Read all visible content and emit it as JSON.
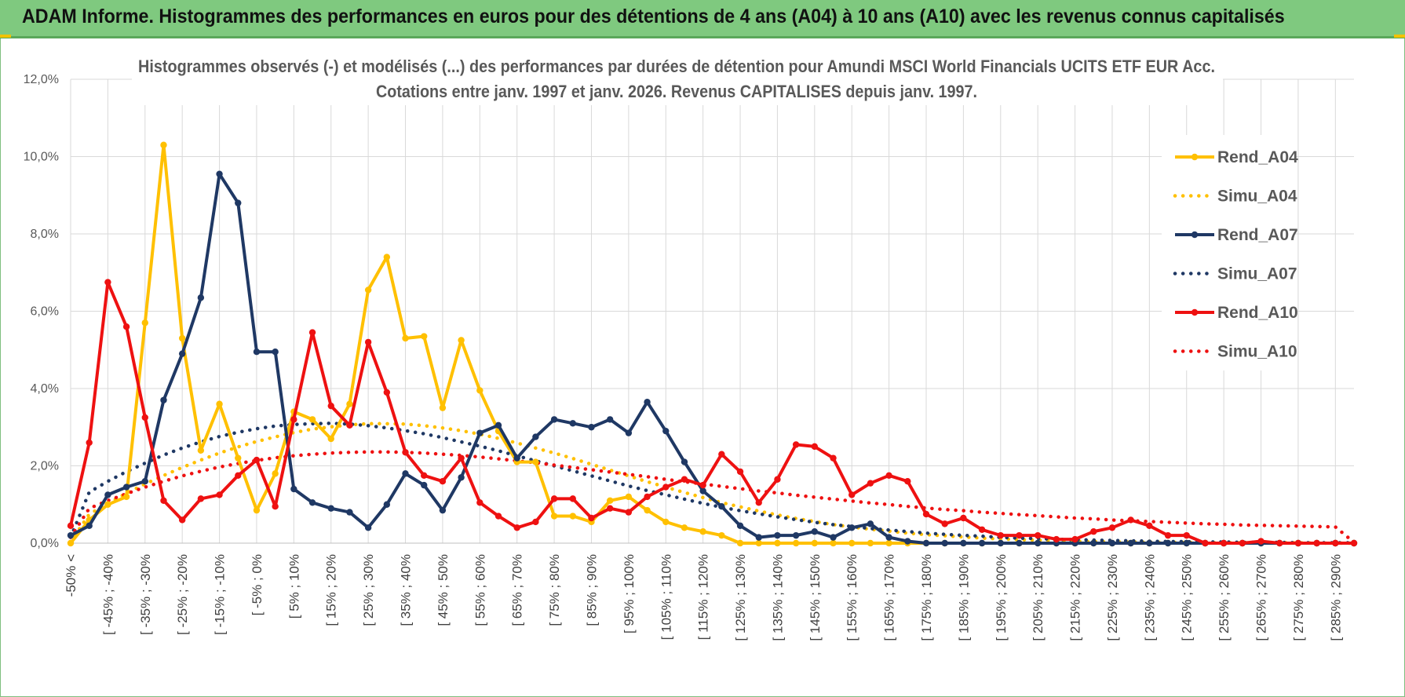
{
  "banner": {
    "title": "ADAM Informe. Histogrammes des performances en euros pour des détentions de 4 ans (A04) à 10 ans (A10) avec les revenus connus capitalisés"
  },
  "colors": {
    "banner_bg": "#7fc97f",
    "a04": "#ffc000",
    "a07": "#1f3864",
    "a10": "#ee1111"
  },
  "chart_data": {
    "type": "line",
    "title": "Histogrammes observés (-) et modélisés (...) des performances par durées de détention pour Amundi MSCI World Financials UCITS ETF EUR Acc.",
    "subtitle": "Cotations entre janv. 1997 et janv. 2026. Revenus CAPITALISES depuis janv. 1997.",
    "yticks": [
      "0,0%",
      "2,0%",
      "4,0%",
      "6,0%",
      "8,0%",
      "10,0%",
      "12,0%"
    ],
    "ylim": [
      0,
      12
    ],
    "grid": true,
    "legend_position": "right",
    "xtick_labels": [
      "-50% <",
      "[ -45% ; -40%",
      "[ -35% ; -30%",
      "[ -25% ; -20%",
      "[ -15% ; -10%",
      "[ -5% ; 0%",
      "[ 5% ; 10%",
      "[ 15% ; 20%",
      "[ 25% ; 30%",
      "[ 35% ; 40%",
      "[ 45% ; 50%",
      "[ 55% ; 60%",
      "[ 65% ; 70%",
      "[ 75% ; 80%",
      "[ 85% ; 90%",
      "[ 95% ; 100%",
      "[ 105% ; 110%",
      "[ 115% ; 120%",
      "[ 125% ; 130%",
      "[ 135% ; 140%",
      "[ 145% ; 150%",
      "[ 155% ; 160%",
      "[ 165% ; 170%",
      "[ 175% ; 180%",
      "[ 185% ; 190%",
      "[ 195% ; 200%",
      "[ 205% ; 210%",
      "[ 215% ; 220%",
      "[ 225% ; 230%",
      "[ 235% ; 240%",
      "[ 245% ; 250%",
      "[ 255% ; 260%",
      "[ 265% ; 270%",
      "[ 275% ; 280%",
      "[ 285% ; 290%"
    ],
    "n_bins": 70,
    "series": [
      {
        "name": "Rend_A04",
        "color": "#ffc000",
        "style": "solid",
        "markers": true,
        "values": [
          0.0,
          0.6,
          1.0,
          1.2,
          5.7,
          10.3,
          5.3,
          2.4,
          3.6,
          2.2,
          0.85,
          1.8,
          3.4,
          3.2,
          2.7,
          3.6,
          6.55,
          7.4,
          5.3,
          5.35,
          3.5,
          5.25,
          3.95,
          2.9,
          2.1,
          2.1,
          0.7,
          0.7,
          0.55,
          1.1,
          1.2,
          0.85,
          0.55,
          0.4,
          0.3,
          0.2,
          0.0,
          0.0,
          0.0,
          0.0,
          0.0,
          0.0,
          0.0,
          0.0,
          0.0,
          0.0,
          0.0,
          0.0,
          0.0,
          0.0,
          0.0,
          0.0,
          0.0,
          0.0,
          0.0,
          0.0,
          0.0,
          0.0,
          0.0,
          0.0,
          0.0,
          0.0,
          0.0,
          0.0,
          0.0,
          0.0,
          0.0,
          0.0,
          0.0,
          0.0
        ]
      },
      {
        "name": "Simu_A04",
        "color": "#ffc000",
        "style": "dotted",
        "markers": false,
        "values": [
          0.03,
          0.75,
          1.03,
          1.29,
          1.53,
          1.75,
          1.96,
          2.15,
          2.33,
          2.49,
          2.63,
          2.75,
          2.86,
          2.95,
          3.01,
          3.06,
          3.09,
          3.09,
          3.08,
          3.04,
          2.98,
          2.91,
          2.82,
          2.71,
          2.59,
          2.46,
          2.33,
          2.19,
          2.04,
          1.89,
          1.74,
          1.59,
          1.45,
          1.31,
          1.18,
          1.05,
          0.94,
          0.83,
          0.73,
          0.64,
          0.56,
          0.48,
          0.42,
          0.36,
          0.31,
          0.26,
          0.22,
          0.19,
          0.16,
          0.13,
          0.11,
          0.09,
          0.08,
          0.06,
          0.05,
          0.04,
          0.03,
          0.03,
          0.02,
          0.02,
          0.02,
          0.01,
          0.01,
          0.01,
          0.01,
          0.01,
          0.01,
          0.0,
          0.0,
          0.0
        ]
      },
      {
        "name": "Rend_A07",
        "color": "#1f3864",
        "style": "solid",
        "markers": true,
        "values": [
          0.2,
          0.45,
          1.25,
          1.45,
          1.6,
          3.7,
          4.9,
          6.35,
          9.55,
          8.8,
          4.95,
          4.95,
          1.4,
          1.05,
          0.9,
          0.8,
          0.4,
          1.0,
          1.8,
          1.5,
          0.85,
          1.7,
          2.85,
          3.05,
          2.2,
          2.75,
          3.2,
          3.1,
          3.0,
          3.2,
          2.85,
          3.65,
          2.9,
          2.1,
          1.35,
          0.95,
          0.45,
          0.15,
          0.2,
          0.2,
          0.3,
          0.15,
          0.4,
          0.5,
          0.15,
          0.05,
          0.0,
          0.0,
          0.0,
          0.0,
          0.0,
          0.0,
          0.0,
          0.0,
          0.0,
          0.0,
          0.0,
          0.0,
          0.0,
          0.0,
          0.0,
          0.0,
          0.0,
          0.0,
          0.0,
          0.0,
          0.0,
          0.0,
          0.0,
          0.0
        ]
      },
      {
        "name": "Simu_A07",
        "color": "#1f3864",
        "style": "dotted",
        "markers": false,
        "values": [
          0.15,
          1.32,
          1.6,
          1.85,
          2.07,
          2.28,
          2.46,
          2.62,
          2.76,
          2.87,
          2.96,
          3.03,
          3.07,
          3.09,
          3.1,
          3.08,
          3.04,
          2.98,
          2.91,
          2.83,
          2.73,
          2.62,
          2.51,
          2.39,
          2.26,
          2.13,
          2.0,
          1.87,
          1.74,
          1.61,
          1.48,
          1.36,
          1.25,
          1.14,
          1.03,
          0.93,
          0.84,
          0.76,
          0.68,
          0.61,
          0.54,
          0.48,
          0.43,
          0.38,
          0.34,
          0.3,
          0.26,
          0.23,
          0.2,
          0.18,
          0.15,
          0.13,
          0.12,
          0.1,
          0.09,
          0.08,
          0.07,
          0.06,
          0.05,
          0.04,
          0.04,
          0.03,
          0.03,
          0.02,
          0.02,
          0.02,
          0.01,
          0.01,
          0.01,
          0.01
        ]
      },
      {
        "name": "Rend_A10",
        "color": "#ee1111",
        "style": "solid",
        "markers": true,
        "values": [
          0.45,
          2.6,
          6.75,
          5.6,
          3.25,
          1.1,
          0.6,
          1.15,
          1.25,
          1.75,
          2.15,
          0.95,
          3.2,
          5.45,
          3.55,
          3.05,
          5.2,
          3.9,
          2.35,
          1.75,
          1.6,
          2.2,
          1.05,
          0.7,
          0.4,
          0.55,
          1.15,
          1.15,
          0.65,
          0.9,
          0.8,
          1.2,
          1.45,
          1.65,
          1.5,
          2.3,
          1.85,
          1.05,
          1.65,
          2.55,
          2.5,
          2.2,
          1.25,
          1.55,
          1.75,
          1.6,
          0.75,
          0.5,
          0.65,
          0.35,
          0.2,
          0.2,
          0.2,
          0.1,
          0.1,
          0.3,
          0.4,
          0.6,
          0.45,
          0.2,
          0.2,
          0.0,
          0.0,
          0.0,
          0.05,
          0.0,
          0.0,
          0.0,
          0.0,
          0.0
        ]
      },
      {
        "name": "Simu_A10",
        "color": "#ee1111",
        "style": "dotted",
        "markers": false,
        "values": [
          0.15,
          0.9,
          1.1,
          1.28,
          1.45,
          1.6,
          1.74,
          1.86,
          1.97,
          2.06,
          2.14,
          2.21,
          2.26,
          2.3,
          2.33,
          2.35,
          2.36,
          2.36,
          2.35,
          2.33,
          2.3,
          2.27,
          2.23,
          2.18,
          2.13,
          2.08,
          2.02,
          1.96,
          1.9,
          1.84,
          1.78,
          1.72,
          1.65,
          1.59,
          1.53,
          1.47,
          1.41,
          1.35,
          1.3,
          1.24,
          1.19,
          1.14,
          1.09,
          1.04,
          1.0,
          0.95,
          0.91,
          0.87,
          0.84,
          0.8,
          0.77,
          0.74,
          0.71,
          0.68,
          0.65,
          0.63,
          0.6,
          0.58,
          0.56,
          0.54,
          0.52,
          0.5,
          0.49,
          0.47,
          0.46,
          0.45,
          0.44,
          0.43,
          0.42,
          0.02
        ]
      }
    ]
  }
}
